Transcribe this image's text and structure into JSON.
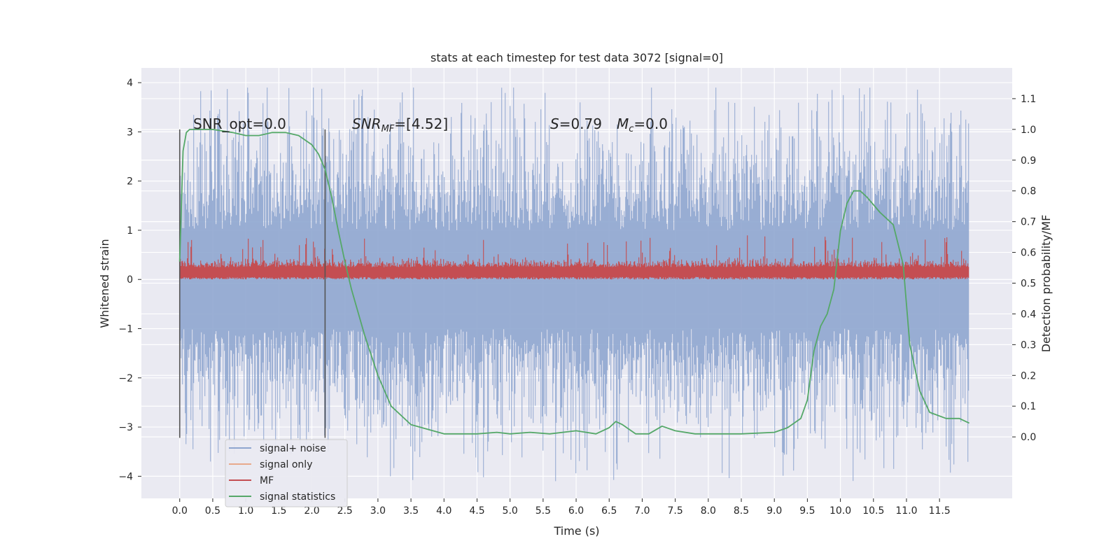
{
  "chart_data": {
    "type": "line",
    "title": "stats at each timestep for test data 3072 [signal=0]",
    "xlabel": "Time (s)",
    "ylabel": "Whitened strain",
    "y2label": "Detection probability/MF",
    "xlim": [
      -0.58,
      12.6
    ],
    "ylim": [
      -4.45,
      4.3
    ],
    "y2lim": [
      -0.2,
      1.2
    ],
    "x_ticks": [
      "0.0",
      "0.5",
      "1.0",
      "1.5",
      "2.0",
      "2.5",
      "3.0",
      "3.5",
      "4.0",
      "4.5",
      "5.0",
      "5.5",
      "6.0",
      "6.5",
      "7.0",
      "7.5",
      "8.0",
      "8.5",
      "9.0",
      "9.5",
      "10.0",
      "10.5",
      "11.0",
      "11.5"
    ],
    "y_ticks": [
      "4",
      "3",
      "2",
      "1",
      "0",
      "−1",
      "−2",
      "−3",
      "−4"
    ],
    "y2_ticks": [
      "1.1",
      "1.0",
      "0.9",
      "0.8",
      "0.7",
      "0.6",
      "0.5",
      "0.4",
      "0.3",
      "0.2",
      "0.1",
      "0.0"
    ],
    "grid": true,
    "legend_placement": "lower-left",
    "annotations": {
      "snr_opt": "SNR_opt=0.0",
      "snr_mf_main": "SNR",
      "snr_mf_sub": "MF",
      "snr_mf_value": "=[4.52]",
      "s_label": "S",
      "s_value": "=0.79",
      "mc_label": "M",
      "mc_sub": "c",
      "mc_value": "=0.0"
    },
    "vertical_lines_x": [
      0.0,
      2.2
    ],
    "series": [
      {
        "name": "signal+ noise",
        "color": "#8fa6cf",
        "axis": "left",
        "envelope": {
          "x_range": [
            0.0,
            11.95
          ],
          "typical_amplitude": 1.8,
          "peak_max": 3.9,
          "peak_min": -4.1
        }
      },
      {
        "name": "signal only",
        "color": "#e8a98c",
        "axis": "left",
        "values": []
      },
      {
        "name": "MF",
        "color": "#c44e52",
        "axis": "left",
        "envelope": {
          "x_range": [
            0.0,
            11.95
          ],
          "baseline": 0.0,
          "typical_top": 0.5,
          "peak_max": 1.0
        }
      },
      {
        "name": "signal statistics",
        "color": "#55a868",
        "axis": "right",
        "x": [
          0.0,
          0.05,
          0.1,
          0.15,
          0.3,
          0.5,
          0.8,
          1.0,
          1.2,
          1.4,
          1.6,
          1.8,
          2.0,
          2.1,
          2.2,
          2.3,
          2.4,
          2.5,
          2.6,
          2.8,
          3.0,
          3.2,
          3.5,
          4.0,
          4.5,
          4.8,
          5.0,
          5.3,
          5.6,
          6.0,
          6.3,
          6.5,
          6.6,
          6.7,
          6.9,
          7.1,
          7.3,
          7.5,
          7.8,
          8.0,
          8.5,
          9.0,
          9.2,
          9.4,
          9.5,
          9.6,
          9.7,
          9.8,
          9.9,
          10.0,
          10.1,
          10.2,
          10.3,
          10.4,
          10.6,
          10.8,
          10.95,
          11.05,
          11.2,
          11.35,
          11.6,
          11.8,
          11.95
        ],
        "y": [
          0.57,
          0.93,
          0.99,
          1.0,
          1.0,
          1.0,
          0.99,
          0.98,
          0.98,
          0.99,
          0.99,
          0.98,
          0.95,
          0.92,
          0.87,
          0.78,
          0.67,
          0.57,
          0.48,
          0.33,
          0.2,
          0.1,
          0.04,
          0.01,
          0.01,
          0.015,
          0.01,
          0.015,
          0.01,
          0.02,
          0.01,
          0.03,
          0.05,
          0.04,
          0.01,
          0.01,
          0.035,
          0.02,
          0.01,
          0.01,
          0.01,
          0.015,
          0.03,
          0.06,
          0.12,
          0.28,
          0.36,
          0.4,
          0.48,
          0.67,
          0.76,
          0.8,
          0.8,
          0.78,
          0.73,
          0.69,
          0.56,
          0.3,
          0.15,
          0.08,
          0.06,
          0.06,
          0.045
        ]
      }
    ],
    "legend": [
      "signal+ noise",
      "signal only",
      "MF",
      "signal statistics"
    ]
  }
}
